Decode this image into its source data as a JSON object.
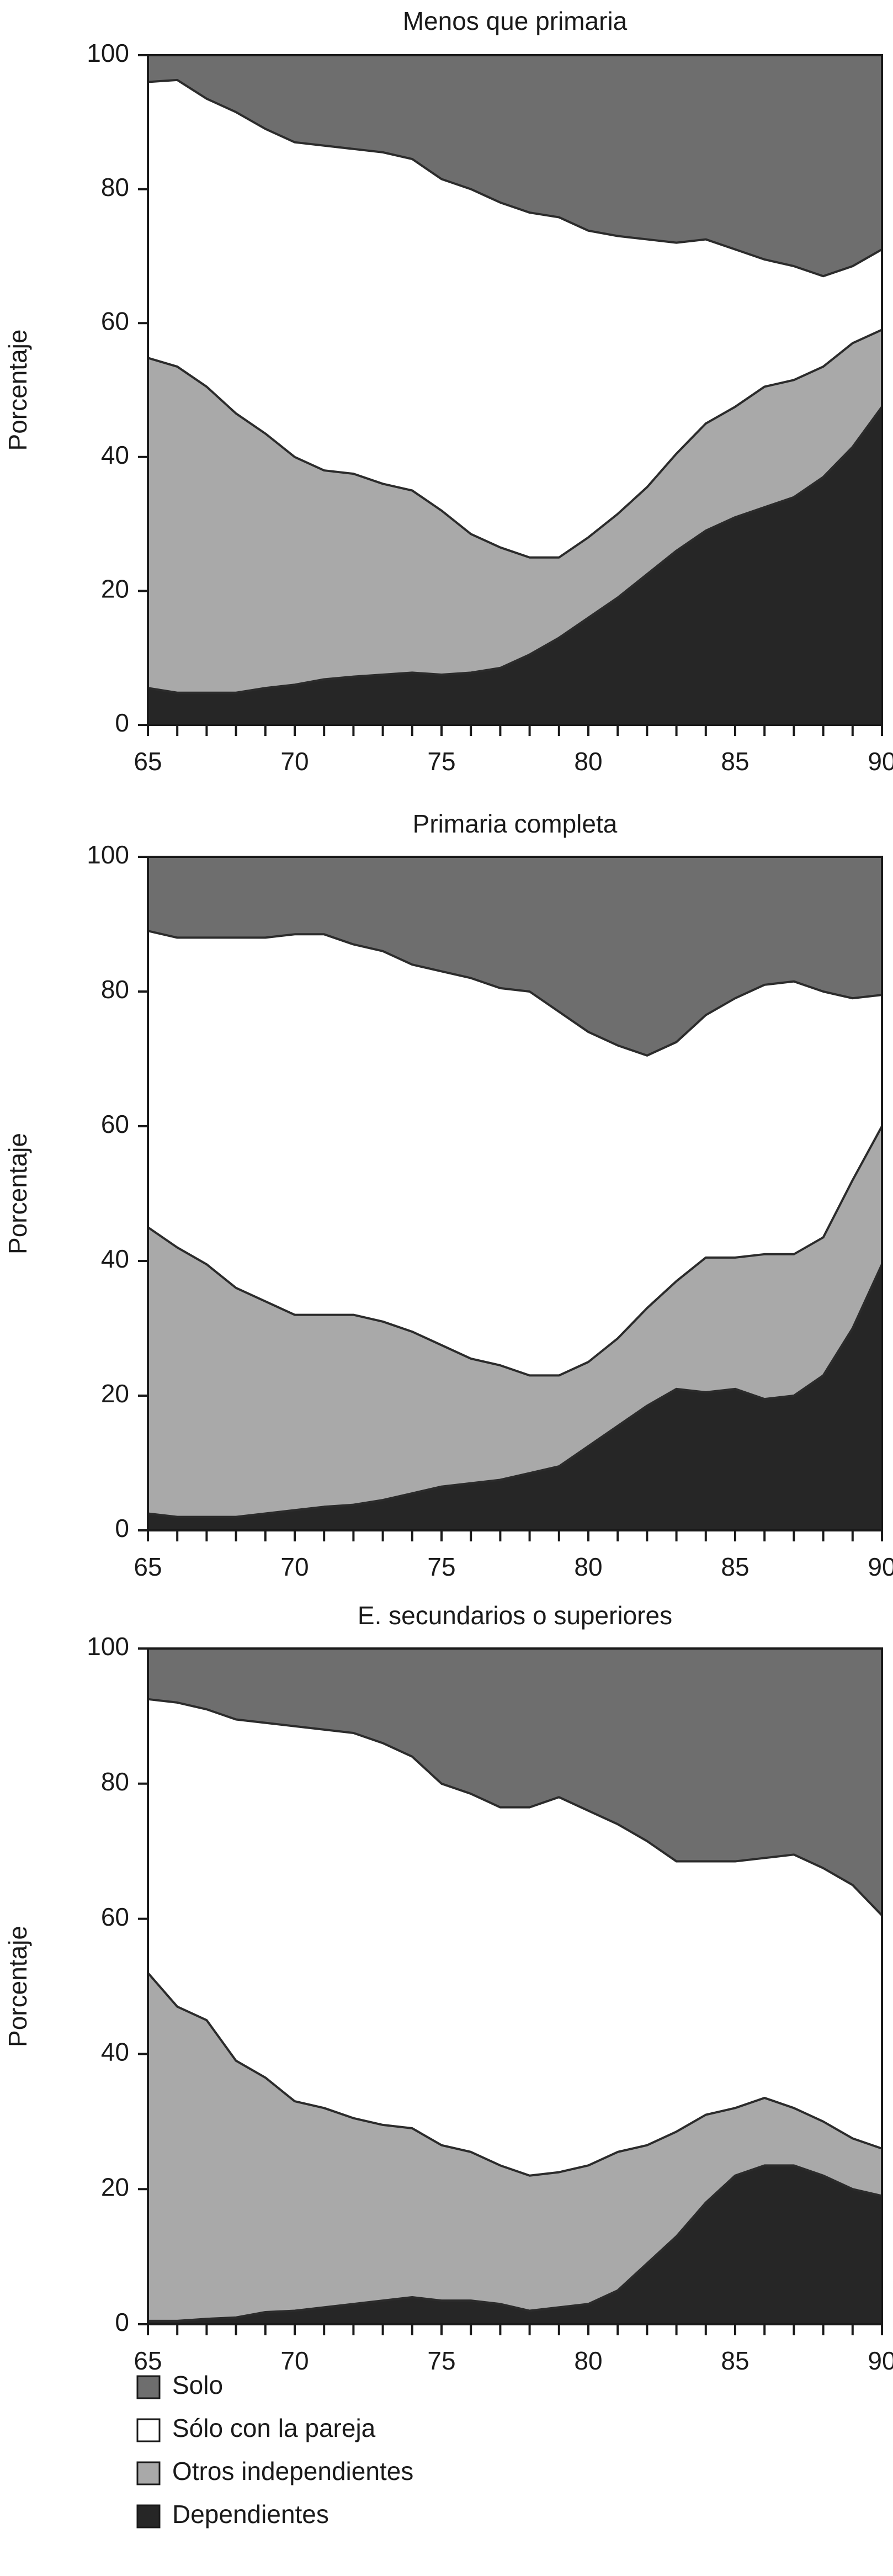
{
  "legend": [
    {
      "label": "Solo",
      "color": "#6e6e6e"
    },
    {
      "label": "Sólo con la pareja",
      "color": "#ffffff"
    },
    {
      "label": "Otros independientes",
      "color": "#a9a9a9"
    },
    {
      "label": "Dependientes",
      "color": "#262626"
    }
  ],
  "chart_data": [
    {
      "type": "area",
      "stacked": true,
      "title": "Menos que primaria",
      "xlabel": "",
      "ylabel": "Porcentaje",
      "xlim": [
        65,
        90
      ],
      "ylim": [
        0,
        100
      ],
      "xticks": [
        "65",
        "70",
        "75",
        "80",
        "85",
        "90"
      ],
      "yticks": [
        "0",
        "20",
        "40",
        "60",
        "80",
        "100"
      ],
      "x": [
        65,
        66,
        67,
        68,
        69,
        70,
        71,
        72,
        73,
        74,
        75,
        76,
        77,
        78,
        79,
        80,
        81,
        82,
        83,
        84,
        85,
        86,
        87,
        88,
        89,
        90
      ],
      "boundaries": {
        "Dependientes": [
          5.5,
          4.8,
          4.8,
          4.8,
          5.5,
          6.0,
          6.8,
          7.2,
          7.5,
          7.8,
          7.5,
          7.8,
          8.5,
          10.5,
          13.0,
          16.0,
          19.0,
          22.5,
          26.0,
          29.0,
          31.0,
          32.5,
          34.0,
          37.0,
          41.5,
          47.5
        ],
        "Otros independientes": [
          54.8,
          53.5,
          50.5,
          46.5,
          43.5,
          40.0,
          38.0,
          37.5,
          36.0,
          35.0,
          32.0,
          28.5,
          26.5,
          25.0,
          25.0,
          28.0,
          31.5,
          35.5,
          40.5,
          45.0,
          47.5,
          50.5,
          51.5,
          53.5,
          57.0,
          59.0
        ],
        "Sólo con la pareja": [
          96.0,
          96.3,
          93.5,
          91.5,
          89.0,
          87.0,
          86.5,
          86.0,
          85.5,
          84.5,
          81.5,
          80.0,
          78.0,
          76.5,
          75.8,
          73.8,
          73.0,
          72.5,
          72.0,
          72.5,
          71.0,
          69.5,
          68.5,
          67.0,
          68.5,
          71.0
        ],
        "Solo": [
          100,
          100,
          100,
          100,
          100,
          100,
          100,
          100,
          100,
          100,
          100,
          100,
          100,
          100,
          100,
          100,
          100,
          100,
          100,
          100,
          100,
          100,
          100,
          100,
          100,
          100
        ]
      }
    },
    {
      "type": "area",
      "stacked": true,
      "title": "Primaria completa",
      "xlabel": "",
      "ylabel": "Porcentaje",
      "xlim": [
        65,
        90
      ],
      "ylim": [
        0,
        100
      ],
      "xticks": [
        "65",
        "70",
        "75",
        "80",
        "85",
        "90"
      ],
      "yticks": [
        "0",
        "20",
        "40",
        "60",
        "80",
        "100"
      ],
      "x": [
        65,
        66,
        67,
        68,
        69,
        70,
        71,
        72,
        73,
        74,
        75,
        76,
        77,
        78,
        79,
        80,
        81,
        82,
        83,
        84,
        85,
        86,
        87,
        88,
        89,
        90
      ],
      "boundaries": {
        "Dependientes": [
          2.5,
          2.0,
          2.0,
          2.0,
          2.5,
          3.0,
          3.5,
          3.8,
          4.5,
          5.5,
          6.5,
          7.0,
          7.5,
          8.5,
          9.5,
          12.5,
          15.5,
          18.5,
          21.0,
          20.5,
          21.0,
          19.5,
          20.0,
          23.0,
          30.0,
          39.5
        ],
        "Otros independientes": [
          45.0,
          42.0,
          39.5,
          36.0,
          34.0,
          32.0,
          32.0,
          32.0,
          31.0,
          29.5,
          27.5,
          25.5,
          24.5,
          23.0,
          23.0,
          25.0,
          28.5,
          33.0,
          37.0,
          40.5,
          40.5,
          41.0,
          41.0,
          43.5,
          52.0,
          60.0
        ],
        "Sólo con la pareja": [
          89.0,
          88.0,
          88.0,
          88.0,
          88.0,
          88.5,
          88.5,
          87.0,
          86.0,
          84.0,
          83.0,
          82.0,
          80.5,
          80.0,
          77.0,
          74.0,
          72.0,
          70.5,
          72.5,
          76.5,
          79.0,
          81.0,
          81.5,
          80.0,
          79.0,
          79.5
        ],
        "Solo": [
          100,
          100,
          100,
          100,
          100,
          100,
          100,
          100,
          100,
          100,
          100,
          100,
          100,
          100,
          100,
          100,
          100,
          100,
          100,
          100,
          100,
          100,
          100,
          100,
          100,
          100
        ]
      }
    },
    {
      "type": "area",
      "stacked": true,
      "title": "E. secundarios o superiores",
      "xlabel": "",
      "ylabel": "Porcentaje",
      "xlim": [
        65,
        90
      ],
      "ylim": [
        0,
        100
      ],
      "xticks": [
        "65",
        "70",
        "75",
        "80",
        "85",
        "90"
      ],
      "yticks": [
        "0",
        "20",
        "40",
        "60",
        "80",
        "100"
      ],
      "x": [
        65,
        66,
        67,
        68,
        69,
        70,
        71,
        72,
        73,
        74,
        75,
        76,
        77,
        78,
        79,
        80,
        81,
        82,
        83,
        84,
        85,
        86,
        87,
        88,
        89,
        90
      ],
      "boundaries": {
        "Dependientes": [
          0.5,
          0.5,
          0.8,
          1.0,
          1.8,
          2.0,
          2.5,
          3.0,
          3.5,
          4.0,
          3.5,
          3.5,
          3.0,
          2.0,
          2.5,
          3.0,
          5.0,
          9.0,
          13.0,
          18.0,
          22.0,
          23.5,
          23.5,
          22.0,
          20.0,
          19.0
        ],
        "Otros independientes": [
          52.0,
          47.0,
          45.0,
          39.0,
          36.5,
          33.0,
          32.0,
          30.5,
          29.5,
          29.0,
          26.5,
          25.5,
          23.5,
          22.0,
          22.5,
          23.5,
          25.5,
          26.5,
          28.5,
          31.0,
          32.0,
          33.5,
          32.0,
          30.0,
          27.5,
          26.0
        ],
        "Sólo con la pareja": [
          92.5,
          92.0,
          91.0,
          89.5,
          89.0,
          88.5,
          88.0,
          87.5,
          86.0,
          84.0,
          80.0,
          78.5,
          76.5,
          76.5,
          78.0,
          76.0,
          74.0,
          71.5,
          68.5,
          68.5,
          68.5,
          69.0,
          69.5,
          67.5,
          65.0,
          60.5
        ],
        "Solo": [
          100,
          100,
          100,
          100,
          100,
          100,
          100,
          100,
          100,
          100,
          100,
          100,
          100,
          100,
          100,
          100,
          100,
          100,
          100,
          100,
          100,
          100,
          100,
          100,
          100,
          100
        ]
      }
    }
  ]
}
